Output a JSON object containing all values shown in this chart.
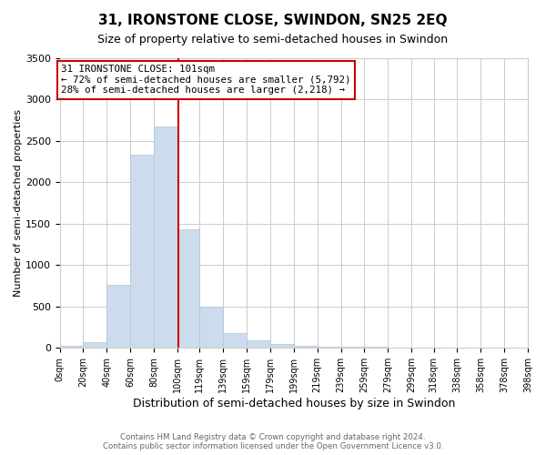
{
  "title": "31, IRONSTONE CLOSE, SWINDON, SN25 2EQ",
  "subtitle": "Size of property relative to semi-detached houses in Swindon",
  "xlabel": "Distribution of semi-detached houses by size in Swindon",
  "ylabel": "Number of semi-detached properties",
  "footer_line1": "Contains HM Land Registry data © Crown copyright and database right 2024.",
  "footer_line2": "Contains public sector information licensed under the Open Government Licence v3.0.",
  "annotation_line1": "31 IRONSTONE CLOSE: 101sqm",
  "annotation_line2": "← 72% of semi-detached houses are smaller (5,792)",
  "annotation_line3": "28% of semi-detached houses are larger (2,218) →",
  "property_size": 101,
  "bar_color": "#cddcec",
  "bar_edge_color": "#aec6dc",
  "marker_line_color": "#cc0000",
  "annotation_box_edge": "#cc0000",
  "bin_edges": [
    0,
    20,
    40,
    60,
    80,
    100,
    119,
    139,
    159,
    179,
    199,
    219,
    239,
    259,
    279,
    299,
    318,
    338,
    358,
    378,
    398
  ],
  "bin_labels": [
    "0sqm",
    "20sqm",
    "40sqm",
    "60sqm",
    "80sqm",
    "100sqm",
    "119sqm",
    "139sqm",
    "159sqm",
    "179sqm",
    "199sqm",
    "219sqm",
    "239sqm",
    "259sqm",
    "279sqm",
    "299sqm",
    "318sqm",
    "338sqm",
    "358sqm",
    "378sqm",
    "398sqm"
  ],
  "counts": [
    30,
    70,
    760,
    2340,
    2680,
    1430,
    500,
    185,
    90,
    50,
    30,
    20,
    15,
    10,
    5,
    5,
    5,
    5,
    5,
    5
  ],
  "ylim": [
    0,
    3500
  ],
  "yticks": [
    0,
    500,
    1000,
    1500,
    2000,
    2500,
    3000,
    3500
  ]
}
